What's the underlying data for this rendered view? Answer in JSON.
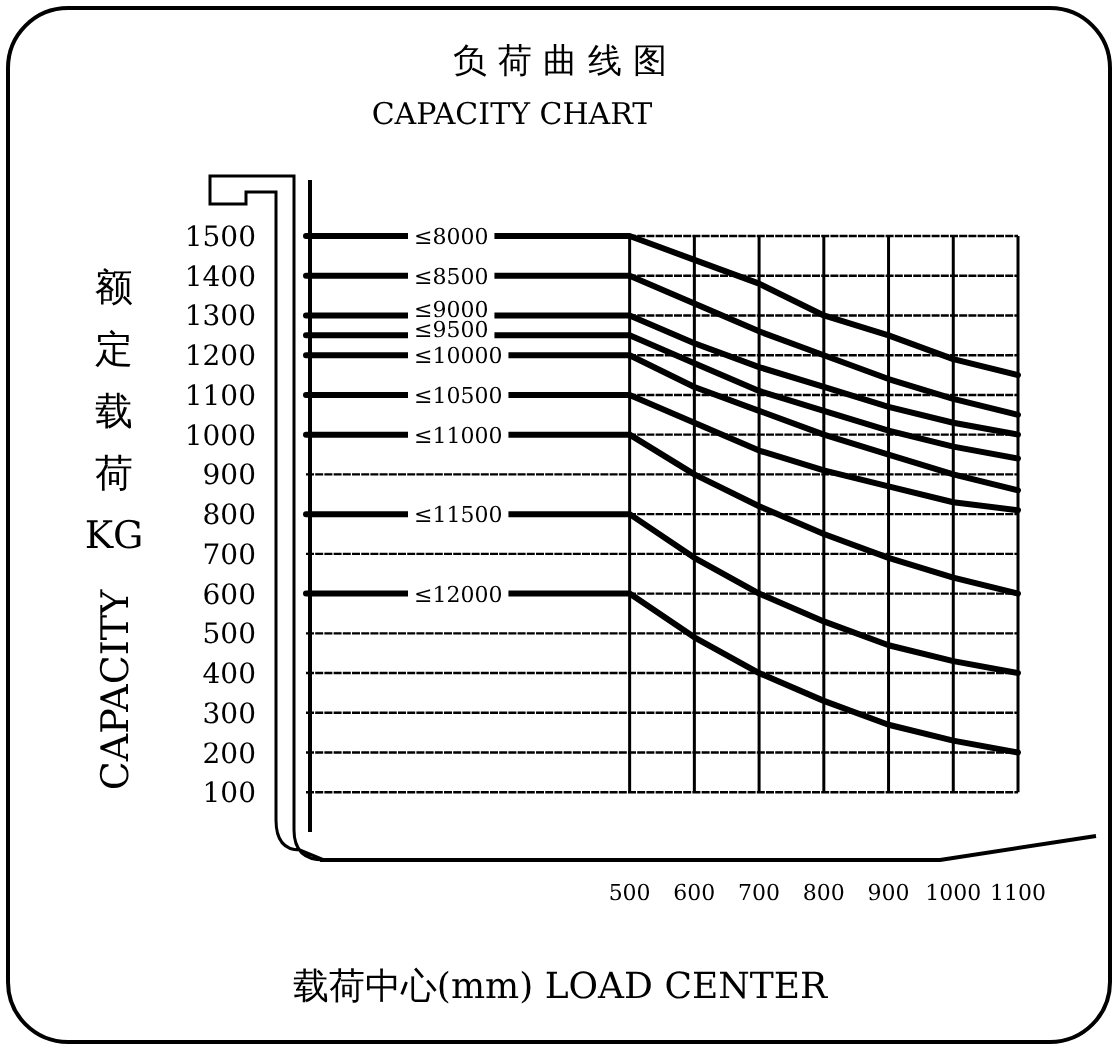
{
  "chart_data": {
    "type": "line",
    "title": "负 荷 曲 线 图",
    "subtitle": "CAPACITY CHART",
    "xlabel": "载荷中心(mm) LOAD CENTER",
    "ylabel": "额定载荷KG CAPACITY",
    "x": [
      0,
      500,
      600,
      700,
      800,
      900,
      1000,
      1100
    ],
    "series": [
      {
        "name": "≤8000",
        "color": "#000000",
        "values": [
          1500,
          1500,
          1440,
          1380,
          1300,
          1250,
          1190,
          1150
        ]
      },
      {
        "name": "≤8500",
        "color": "#000000",
        "values": [
          1400,
          1400,
          1330,
          1260,
          1200,
          1140,
          1090,
          1050
        ]
      },
      {
        "name": "≤9000",
        "color": "#000000",
        "values": [
          1300,
          1300,
          1230,
          1170,
          1120,
          1070,
          1030,
          1000
        ]
      },
      {
        "name": "≤9500",
        "color": "#000000",
        "values": [
          1250,
          1250,
          1180,
          1110,
          1060,
          1010,
          970,
          940
        ]
      },
      {
        "name": "≤10000",
        "color": "#000000",
        "values": [
          1200,
          1200,
          1120,
          1060,
          1000,
          950,
          900,
          860
        ]
      },
      {
        "name": "≤10500",
        "color": "#000000",
        "values": [
          1100,
          1100,
          1030,
          960,
          910,
          870,
          830,
          810
        ]
      },
      {
        "name": "≤11000",
        "color": "#000000",
        "values": [
          1000,
          1000,
          900,
          820,
          750,
          690,
          640,
          600
        ]
      },
      {
        "name": "≤11500",
        "color": "#000000",
        "values": [
          800,
          800,
          690,
          600,
          530,
          470,
          430,
          400
        ]
      },
      {
        "name": "≤12000",
        "color": "#000000",
        "values": [
          600,
          600,
          490,
          400,
          330,
          270,
          230,
          200
        ]
      }
    ],
    "xlim": [
      0,
      1100
    ],
    "xticks": [
      500,
      600,
      700,
      800,
      900,
      1000,
      1100
    ],
    "ylim": [
      0,
      1500
    ],
    "yticks": [
      100,
      200,
      300,
      400,
      500,
      600,
      700,
      800,
      900,
      1000,
      1100,
      1200,
      1300,
      1400,
      1500
    ],
    "grid": true,
    "marker": "none",
    "line_style": "solid"
  }
}
